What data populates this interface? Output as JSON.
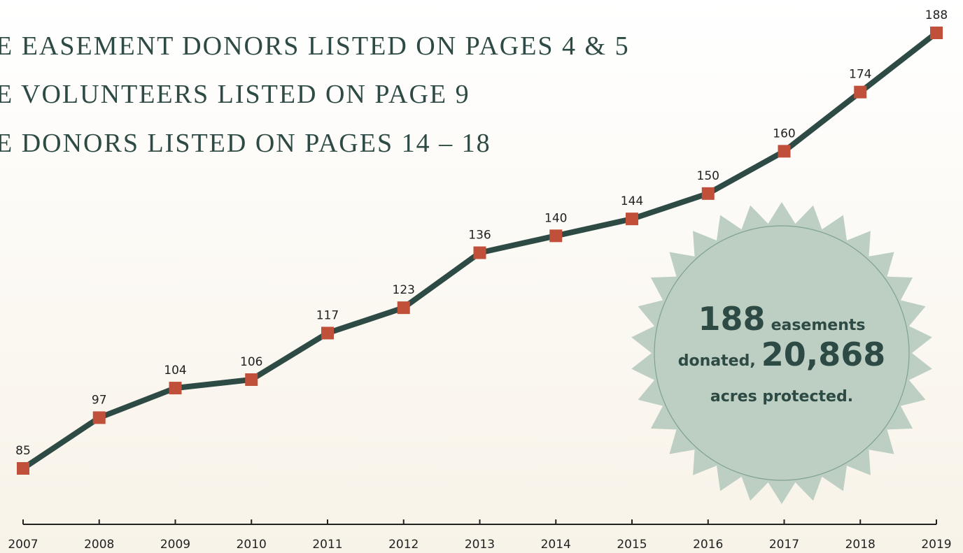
{
  "chart_data": {
    "type": "line",
    "headings": [
      "E EASEMENT DONORS LISTED ON PAGES 4 & 5",
      "E VOLUNTEERS LISTED ON PAGE 9",
      "E DONORS LISTED ON PAGES 14 – 18"
    ],
    "categories": [
      "2007",
      "2008",
      "2009",
      "2010",
      "2011",
      "2012",
      "2013",
      "2014",
      "2015",
      "2016",
      "2017",
      "2018",
      "2019"
    ],
    "series": [
      {
        "name": "Easements",
        "color": "#2d4a44",
        "marker_color": "#c0503a",
        "values": [
          85,
          97,
          104,
          106,
          117,
          123,
          136,
          140,
          144,
          150,
          160,
          174,
          188
        ]
      }
    ],
    "annotations": {
      "count": "188",
      "count_text": "easements",
      "acres_lead": "donated,",
      "acres": "20,868",
      "acres_text": "acres protected."
    }
  }
}
